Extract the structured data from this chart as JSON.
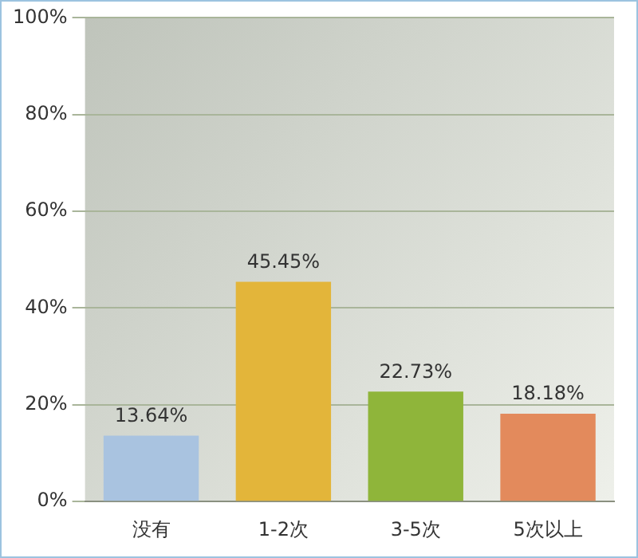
{
  "chart_data": {
    "type": "bar",
    "categories": [
      "没有",
      "1-2次",
      "3-5次",
      "5次以上"
    ],
    "values": [
      13.64,
      45.45,
      22.73,
      18.18
    ],
    "colors": [
      "#a9c3e0",
      "#e3b53a",
      "#8fb53a",
      "#e38a5c"
    ],
    "value_labels": [
      "13.64%",
      "45.45%",
      "22.73%",
      "18.18%"
    ],
    "ylim": [
      0,
      100
    ],
    "yticks": [
      {
        "value": 0,
        "label": "0%"
      },
      {
        "value": 20,
        "label": "20%"
      },
      {
        "value": 40,
        "label": "40%"
      },
      {
        "value": 60,
        "label": "60%"
      },
      {
        "value": 80,
        "label": "80%"
      },
      {
        "value": 100,
        "label": "100%"
      }
    ],
    "grid": "y",
    "legend": false
  }
}
